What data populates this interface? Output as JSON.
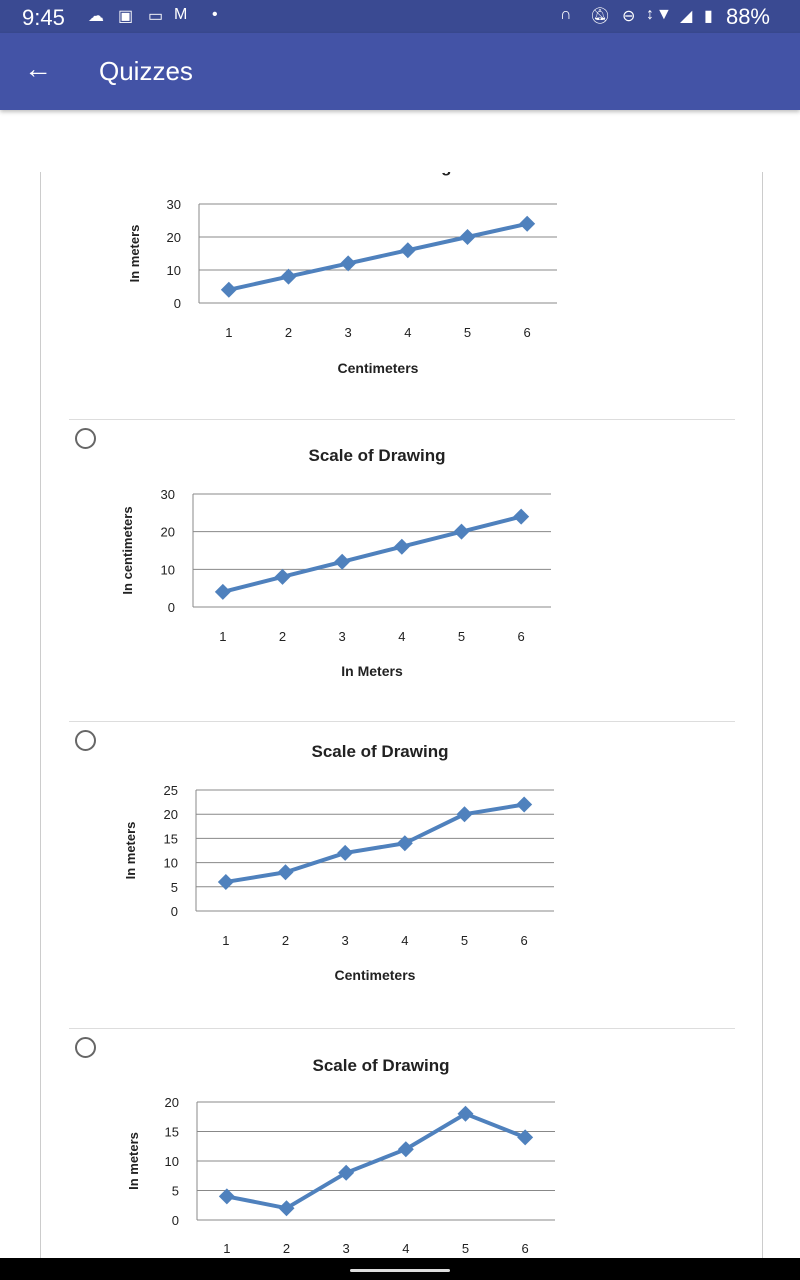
{
  "status_bar": {
    "time": "9:45",
    "battery": "88%",
    "left_icons": [
      "cloud-icon",
      "image-icon",
      "video-icon",
      "gmail-icon",
      "dot-icon"
    ],
    "right_icons": [
      "headphones-icon",
      "bell-off-icon",
      "dnd-icon",
      "data-arrows-icon",
      "wifi-icon",
      "signal-icon",
      "battery-icon"
    ]
  },
  "app_bar": {
    "title": "Quizzes",
    "back_icon": "arrow-back-icon"
  },
  "colors": {
    "status": "#3a4a92",
    "appbar": "#4353a6",
    "series": "#4f81bd"
  },
  "chart_data": [
    {
      "type": "line",
      "title": "Scale of Drawing",
      "xlabel": "Centimeters",
      "ylabel": "In meters",
      "categories": [
        "1",
        "2",
        "3",
        "4",
        "5",
        "6"
      ],
      "values": [
        4,
        8,
        12,
        16,
        20,
        24
      ],
      "yticks": [
        "0",
        "10",
        "20",
        "30"
      ],
      "ylim": [
        0,
        30
      ],
      "grid": true,
      "has_radio": false
    },
    {
      "type": "line",
      "title": "Scale of Drawing",
      "xlabel": "In Meters",
      "ylabel": "In centimeters",
      "categories": [
        "1",
        "2",
        "3",
        "4",
        "5",
        "6"
      ],
      "values": [
        4,
        8,
        12,
        16,
        20,
        24
      ],
      "yticks": [
        "0",
        "10",
        "20",
        "30"
      ],
      "ylim": [
        0,
        30
      ],
      "grid": true,
      "has_radio": true
    },
    {
      "type": "line",
      "title": "Scale of Drawing",
      "xlabel": "Centimeters",
      "ylabel": "In meters",
      "categories": [
        "1",
        "2",
        "3",
        "4",
        "5",
        "6"
      ],
      "values": [
        6,
        8,
        12,
        14,
        20,
        22
      ],
      "yticks": [
        "0",
        "5",
        "10",
        "15",
        "20",
        "25"
      ],
      "ylim": [
        0,
        25
      ],
      "grid": true,
      "has_radio": true
    },
    {
      "type": "line",
      "title": "Scale of Drawing",
      "xlabel": "",
      "ylabel": "In meters",
      "categories": [
        "1",
        "2",
        "3",
        "4",
        "5",
        "6"
      ],
      "values": [
        4,
        2,
        8,
        12,
        18,
        14
      ],
      "yticks": [
        "0",
        "5",
        "10",
        "15",
        "20"
      ],
      "ylim": [
        0,
        20
      ],
      "grid": true,
      "has_radio": true
    }
  ]
}
